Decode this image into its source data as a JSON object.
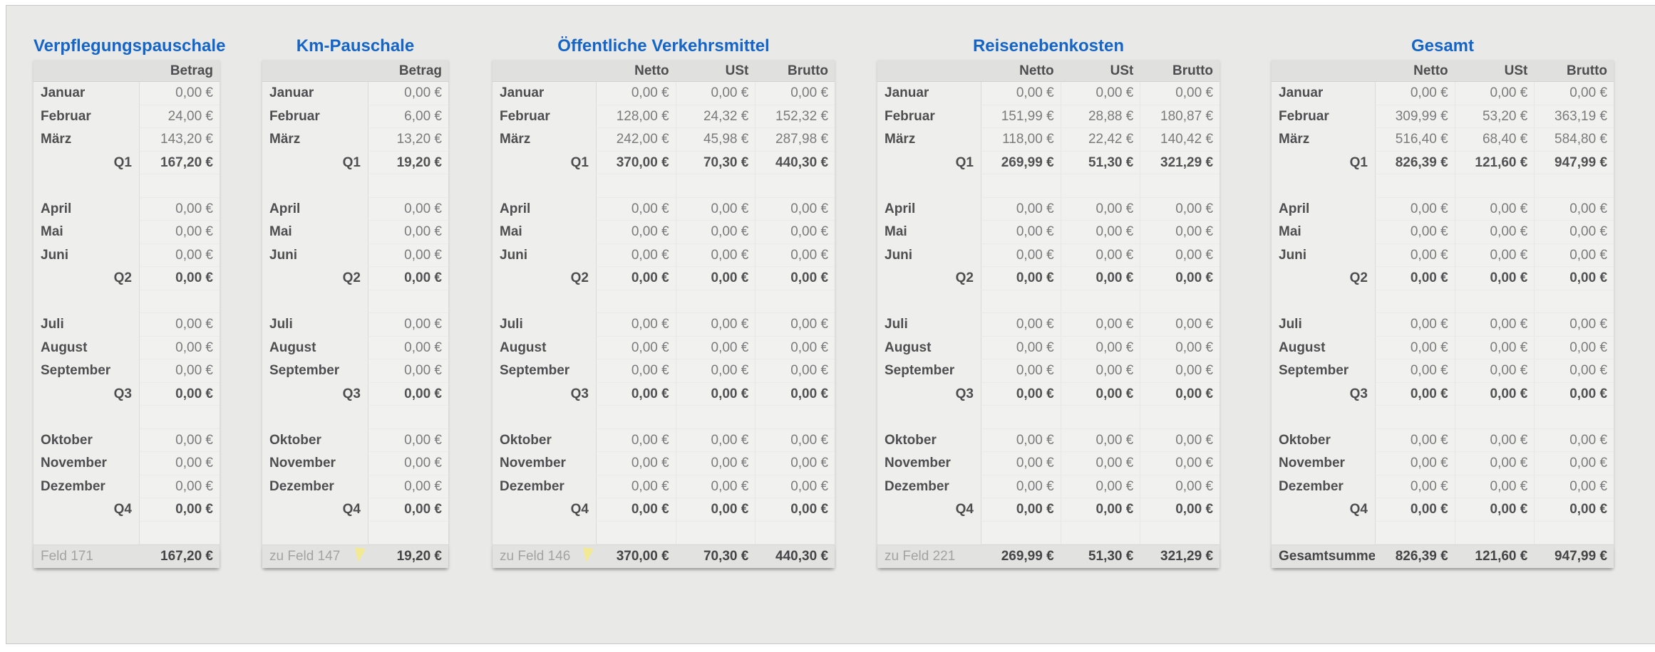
{
  "colors": {
    "title_accent": "#1565c8",
    "comment_marker": "#f1ea93"
  },
  "tables": [
    {
      "title": "Verpflegungspauschale",
      "column_headers": [
        "Betrag"
      ],
      "rows": [
        {
          "type": "month",
          "label": "Januar",
          "values": [
            "0,00 €"
          ]
        },
        {
          "type": "month",
          "label": "Februar",
          "values": [
            "24,00 €"
          ]
        },
        {
          "type": "month",
          "label": "März",
          "values": [
            "143,20 €"
          ]
        },
        {
          "type": "quarter",
          "label": "Q1",
          "values": [
            "167,20 €"
          ]
        },
        {
          "type": "spacer",
          "label": "",
          "values": [
            ""
          ]
        },
        {
          "type": "month",
          "label": "April",
          "values": [
            "0,00 €"
          ]
        },
        {
          "type": "month",
          "label": "Mai",
          "values": [
            "0,00 €"
          ]
        },
        {
          "type": "month",
          "label": "Juni",
          "values": [
            "0,00 €"
          ]
        },
        {
          "type": "quarter",
          "label": "Q2",
          "values": [
            "0,00 €"
          ]
        },
        {
          "type": "spacer",
          "label": "",
          "values": [
            ""
          ]
        },
        {
          "type": "month",
          "label": "Juli",
          "values": [
            "0,00 €"
          ]
        },
        {
          "type": "month",
          "label": "August",
          "values": [
            "0,00 €"
          ]
        },
        {
          "type": "month",
          "label": "September",
          "values": [
            "0,00 €"
          ]
        },
        {
          "type": "quarter",
          "label": "Q3",
          "values": [
            "0,00 €"
          ]
        },
        {
          "type": "spacer",
          "label": "",
          "values": [
            ""
          ]
        },
        {
          "type": "month",
          "label": "Oktober",
          "values": [
            "0,00 €"
          ]
        },
        {
          "type": "month",
          "label": "November",
          "values": [
            "0,00 €"
          ]
        },
        {
          "type": "month",
          "label": "Dezember",
          "values": [
            "0,00 €"
          ]
        },
        {
          "type": "quarter",
          "label": "Q4",
          "values": [
            "0,00 €"
          ]
        },
        {
          "type": "spacer",
          "label": "",
          "values": [
            ""
          ]
        }
      ],
      "footer": {
        "label": "Feld 171",
        "values": [
          "167,20 €"
        ],
        "marker": false,
        "label_bold": false
      }
    },
    {
      "title": "Km-Pauschale",
      "column_headers": [
        "Betrag"
      ],
      "rows": [
        {
          "type": "month",
          "label": "Januar",
          "values": [
            "0,00 €"
          ]
        },
        {
          "type": "month",
          "label": "Februar",
          "values": [
            "6,00 €"
          ]
        },
        {
          "type": "month",
          "label": "März",
          "values": [
            "13,20 €"
          ]
        },
        {
          "type": "quarter",
          "label": "Q1",
          "values": [
            "19,20 €"
          ]
        },
        {
          "type": "spacer",
          "label": "",
          "values": [
            ""
          ]
        },
        {
          "type": "month",
          "label": "April",
          "values": [
            "0,00 €"
          ]
        },
        {
          "type": "month",
          "label": "Mai",
          "values": [
            "0,00 €"
          ]
        },
        {
          "type": "month",
          "label": "Juni",
          "values": [
            "0,00 €"
          ]
        },
        {
          "type": "quarter",
          "label": "Q2",
          "values": [
            "0,00 €"
          ]
        },
        {
          "type": "spacer",
          "label": "",
          "values": [
            ""
          ]
        },
        {
          "type": "month",
          "label": "Juli",
          "values": [
            "0,00 €"
          ]
        },
        {
          "type": "month",
          "label": "August",
          "values": [
            "0,00 €"
          ]
        },
        {
          "type": "month",
          "label": "September",
          "values": [
            "0,00 €"
          ]
        },
        {
          "type": "quarter",
          "label": "Q3",
          "values": [
            "0,00 €"
          ]
        },
        {
          "type": "spacer",
          "label": "",
          "values": [
            ""
          ]
        },
        {
          "type": "month",
          "label": "Oktober",
          "values": [
            "0,00 €"
          ]
        },
        {
          "type": "month",
          "label": "November",
          "values": [
            "0,00 €"
          ]
        },
        {
          "type": "month",
          "label": "Dezember",
          "values": [
            "0,00 €"
          ]
        },
        {
          "type": "quarter",
          "label": "Q4",
          "values": [
            "0,00 €"
          ]
        },
        {
          "type": "spacer",
          "label": "",
          "values": [
            ""
          ]
        }
      ],
      "footer": {
        "label": "zu Feld 147",
        "values": [
          "19,20 €"
        ],
        "marker": true,
        "label_bold": false
      }
    },
    {
      "title": "Öffentliche Verkehrsmittel",
      "column_headers": [
        "Netto",
        "USt",
        "Brutto"
      ],
      "rows": [
        {
          "type": "month",
          "label": "Januar",
          "values": [
            "0,00 €",
            "0,00 €",
            "0,00 €"
          ]
        },
        {
          "type": "month",
          "label": "Februar",
          "values": [
            "128,00 €",
            "24,32 €",
            "152,32 €"
          ]
        },
        {
          "type": "month",
          "label": "März",
          "values": [
            "242,00 €",
            "45,98 €",
            "287,98 €"
          ]
        },
        {
          "type": "quarter",
          "label": "Q1",
          "values": [
            "370,00 €",
            "70,30 €",
            "440,30 €"
          ]
        },
        {
          "type": "spacer",
          "label": "",
          "values": [
            "",
            "",
            ""
          ]
        },
        {
          "type": "month",
          "label": "April",
          "values": [
            "0,00 €",
            "0,00 €",
            "0,00 €"
          ]
        },
        {
          "type": "month",
          "label": "Mai",
          "values": [
            "0,00 €",
            "0,00 €",
            "0,00 €"
          ]
        },
        {
          "type": "month",
          "label": "Juni",
          "values": [
            "0,00 €",
            "0,00 €",
            "0,00 €"
          ]
        },
        {
          "type": "quarter",
          "label": "Q2",
          "values": [
            "0,00 €",
            "0,00 €",
            "0,00 €"
          ]
        },
        {
          "type": "spacer",
          "label": "",
          "values": [
            "",
            "",
            ""
          ]
        },
        {
          "type": "month",
          "label": "Juli",
          "values": [
            "0,00 €",
            "0,00 €",
            "0,00 €"
          ]
        },
        {
          "type": "month",
          "label": "August",
          "values": [
            "0,00 €",
            "0,00 €",
            "0,00 €"
          ]
        },
        {
          "type": "month",
          "label": "September",
          "values": [
            "0,00 €",
            "0,00 €",
            "0,00 €"
          ]
        },
        {
          "type": "quarter",
          "label": "Q3",
          "values": [
            "0,00 €",
            "0,00 €",
            "0,00 €"
          ]
        },
        {
          "type": "spacer",
          "label": "",
          "values": [
            "",
            "",
            ""
          ]
        },
        {
          "type": "month",
          "label": "Oktober",
          "values": [
            "0,00 €",
            "0,00 €",
            "0,00 €"
          ]
        },
        {
          "type": "month",
          "label": "November",
          "values": [
            "0,00 €",
            "0,00 €",
            "0,00 €"
          ]
        },
        {
          "type": "month",
          "label": "Dezember",
          "values": [
            "0,00 €",
            "0,00 €",
            "0,00 €"
          ]
        },
        {
          "type": "quarter",
          "label": "Q4",
          "values": [
            "0,00 €",
            "0,00 €",
            "0,00 €"
          ]
        },
        {
          "type": "spacer",
          "label": "",
          "values": [
            "",
            "",
            ""
          ]
        }
      ],
      "footer": {
        "label": "zu Feld 146",
        "values": [
          "370,00 €",
          "70,30 €",
          "440,30 €"
        ],
        "marker": true,
        "label_bold": false
      }
    },
    {
      "title": "Reisenebenkosten",
      "column_headers": [
        "Netto",
        "USt",
        "Brutto"
      ],
      "rows": [
        {
          "type": "month",
          "label": "Januar",
          "values": [
            "0,00 €",
            "0,00 €",
            "0,00 €"
          ]
        },
        {
          "type": "month",
          "label": "Februar",
          "values": [
            "151,99 €",
            "28,88 €",
            "180,87 €"
          ]
        },
        {
          "type": "month",
          "label": "März",
          "values": [
            "118,00 €",
            "22,42 €",
            "140,42 €"
          ]
        },
        {
          "type": "quarter",
          "label": "Q1",
          "values": [
            "269,99 €",
            "51,30 €",
            "321,29 €"
          ]
        },
        {
          "type": "spacer",
          "label": "",
          "values": [
            "",
            "",
            ""
          ]
        },
        {
          "type": "month",
          "label": "April",
          "values": [
            "0,00 €",
            "0,00 €",
            "0,00 €"
          ]
        },
        {
          "type": "month",
          "label": "Mai",
          "values": [
            "0,00 €",
            "0,00 €",
            "0,00 €"
          ]
        },
        {
          "type": "month",
          "label": "Juni",
          "values": [
            "0,00 €",
            "0,00 €",
            "0,00 €"
          ]
        },
        {
          "type": "quarter",
          "label": "Q2",
          "values": [
            "0,00 €",
            "0,00 €",
            "0,00 €"
          ]
        },
        {
          "type": "spacer",
          "label": "",
          "values": [
            "",
            "",
            ""
          ]
        },
        {
          "type": "month",
          "label": "Juli",
          "values": [
            "0,00 €",
            "0,00 €",
            "0,00 €"
          ]
        },
        {
          "type": "month",
          "label": "August",
          "values": [
            "0,00 €",
            "0,00 €",
            "0,00 €"
          ]
        },
        {
          "type": "month",
          "label": "September",
          "values": [
            "0,00 €",
            "0,00 €",
            "0,00 €"
          ]
        },
        {
          "type": "quarter",
          "label": "Q3",
          "values": [
            "0,00 €",
            "0,00 €",
            "0,00 €"
          ]
        },
        {
          "type": "spacer",
          "label": "",
          "values": [
            "",
            "",
            ""
          ]
        },
        {
          "type": "month",
          "label": "Oktober",
          "values": [
            "0,00 €",
            "0,00 €",
            "0,00 €"
          ]
        },
        {
          "type": "month",
          "label": "November",
          "values": [
            "0,00 €",
            "0,00 €",
            "0,00 €"
          ]
        },
        {
          "type": "month",
          "label": "Dezember",
          "values": [
            "0,00 €",
            "0,00 €",
            "0,00 €"
          ]
        },
        {
          "type": "quarter",
          "label": "Q4",
          "values": [
            "0,00 €",
            "0,00 €",
            "0,00 €"
          ]
        },
        {
          "type": "spacer",
          "label": "",
          "values": [
            "",
            "",
            ""
          ]
        }
      ],
      "footer": {
        "label": "zu Feld 221",
        "values": [
          "269,99 €",
          "51,30 €",
          "321,29 €"
        ],
        "marker": false,
        "label_bold": false
      }
    },
    {
      "title": "Gesamt",
      "column_headers": [
        "Netto",
        "USt",
        "Brutto"
      ],
      "rows": [
        {
          "type": "month",
          "label": "Januar",
          "values": [
            "0,00 €",
            "0,00 €",
            "0,00 €"
          ]
        },
        {
          "type": "month",
          "label": "Februar",
          "values": [
            "309,99 €",
            "53,20 €",
            "363,19 €"
          ]
        },
        {
          "type": "month",
          "label": "März",
          "values": [
            "516,40 €",
            "68,40 €",
            "584,80 €"
          ]
        },
        {
          "type": "quarter",
          "label": "Q1",
          "values": [
            "826,39 €",
            "121,60 €",
            "947,99 €"
          ]
        },
        {
          "type": "spacer",
          "label": "",
          "values": [
            "",
            "",
            ""
          ]
        },
        {
          "type": "month",
          "label": "April",
          "values": [
            "0,00 €",
            "0,00 €",
            "0,00 €"
          ]
        },
        {
          "type": "month",
          "label": "Mai",
          "values": [
            "0,00 €",
            "0,00 €",
            "0,00 €"
          ]
        },
        {
          "type": "month",
          "label": "Juni",
          "values": [
            "0,00 €",
            "0,00 €",
            "0,00 €"
          ]
        },
        {
          "type": "quarter",
          "label": "Q2",
          "values": [
            "0,00 €",
            "0,00 €",
            "0,00 €"
          ]
        },
        {
          "type": "spacer",
          "label": "",
          "values": [
            "",
            "",
            ""
          ]
        },
        {
          "type": "month",
          "label": "Juli",
          "values": [
            "0,00 €",
            "0,00 €",
            "0,00 €"
          ]
        },
        {
          "type": "month",
          "label": "August",
          "values": [
            "0,00 €",
            "0,00 €",
            "0,00 €"
          ]
        },
        {
          "type": "month",
          "label": "September",
          "values": [
            "0,00 €",
            "0,00 €",
            "0,00 €"
          ]
        },
        {
          "type": "quarter",
          "label": "Q3",
          "values": [
            "0,00 €",
            "0,00 €",
            "0,00 €"
          ]
        },
        {
          "type": "spacer",
          "label": "",
          "values": [
            "",
            "",
            ""
          ]
        },
        {
          "type": "month",
          "label": "Oktober",
          "values": [
            "0,00 €",
            "0,00 €",
            "0,00 €"
          ]
        },
        {
          "type": "month",
          "label": "November",
          "values": [
            "0,00 €",
            "0,00 €",
            "0,00 €"
          ]
        },
        {
          "type": "month",
          "label": "Dezember",
          "values": [
            "0,00 €",
            "0,00 €",
            "0,00 €"
          ]
        },
        {
          "type": "quarter",
          "label": "Q4",
          "values": [
            "0,00 €",
            "0,00 €",
            "0,00 €"
          ]
        },
        {
          "type": "spacer",
          "label": "",
          "values": [
            "",
            "",
            ""
          ]
        }
      ],
      "footer": {
        "label": "Gesamtsumme",
        "values": [
          "826,39 €",
          "121,60 €",
          "947,99 €"
        ],
        "marker": false,
        "label_bold": true
      }
    }
  ]
}
